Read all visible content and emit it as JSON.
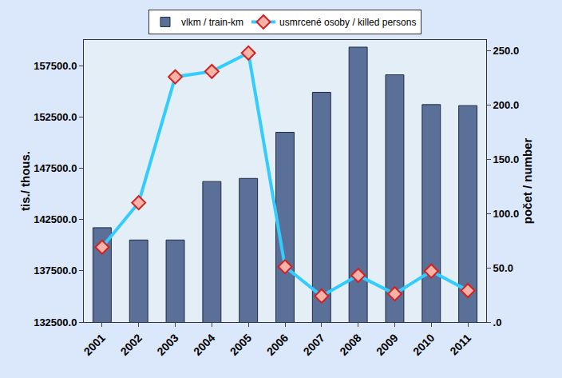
{
  "chart_data": {
    "type": "bar",
    "categories": [
      "2001",
      "2002",
      "2003",
      "2004",
      "2005",
      "2006",
      "2007",
      "2008",
      "2009",
      "2010",
      "2011"
    ],
    "series": [
      {
        "name": "vlkm / train-km",
        "type": "bar",
        "color": "#5b7099",
        "values": [
          141700,
          140500,
          140500,
          146200,
          146500,
          151000,
          154900,
          159300,
          156600,
          153700,
          153600
        ]
      },
      {
        "name": "usmrcené osoby / killed persons",
        "type": "line",
        "axis": "y2",
        "color": "#33ccff",
        "marker": "diamond",
        "values": [
          69,
          110,
          226,
          231,
          248,
          51,
          24,
          43,
          26,
          47,
          29
        ]
      }
    ],
    "ylabel": "tis./ thous.",
    "y2label": "počet / number",
    "ylim": [
      132500,
      160000
    ],
    "yticks": [
      {
        "value": 132500,
        "label": "132500.0"
      },
      {
        "value": 137500,
        "label": "137500.0"
      },
      {
        "value": 142500,
        "label": "142500.0"
      },
      {
        "value": 147500,
        "label": "147500.0"
      },
      {
        "value": 152500,
        "label": "152500.0"
      },
      {
        "value": 157500,
        "label": "157500.0"
      }
    ],
    "y2lim": [
      0,
      260
    ],
    "y2ticks": [
      {
        "value": 0,
        "label": ".0"
      },
      {
        "value": 50,
        "label": "50.0"
      },
      {
        "value": 100,
        "label": "100.0"
      },
      {
        "value": 150,
        "label": "150.0"
      },
      {
        "value": 200,
        "label": "200.0"
      },
      {
        "value": 250,
        "label": "250.0"
      }
    ],
    "grid": false,
    "legend": "top"
  }
}
